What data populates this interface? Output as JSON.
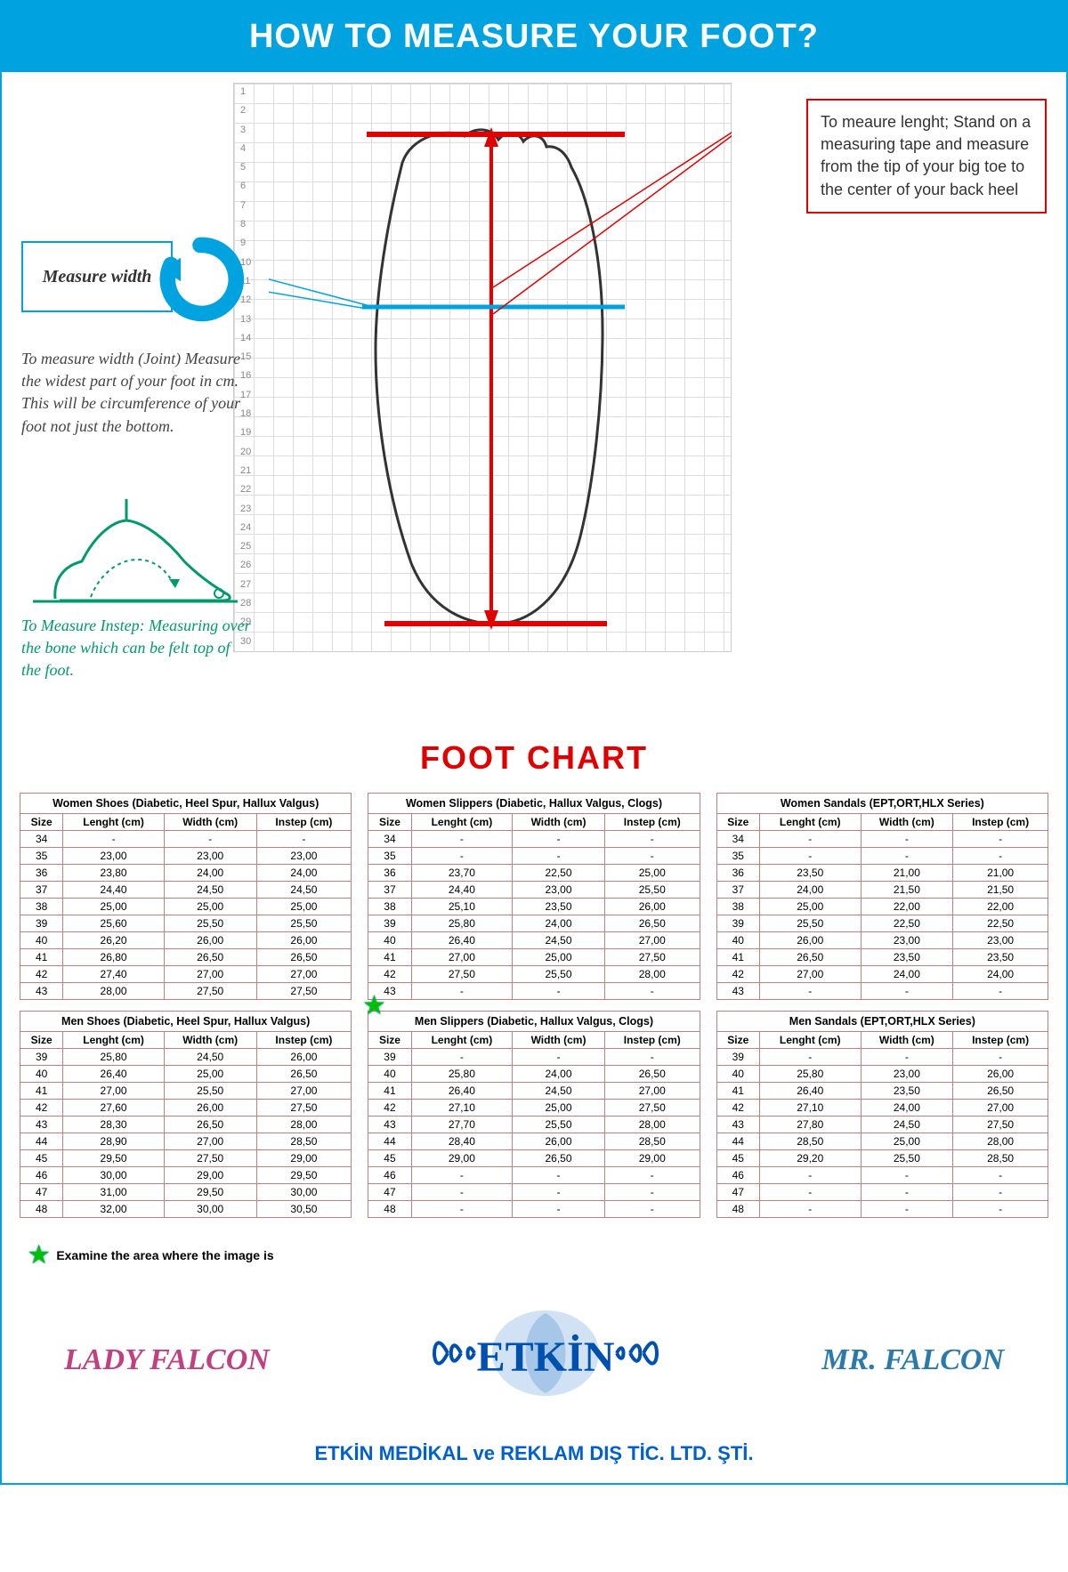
{
  "banner_title": "HOW TO MEASURE YOUR FOOT?",
  "width_box_label": "Measure width",
  "width_instructions": "To measure width (Joint) Measure the widest part of your foot in cm. This will be circumference of your foot not just the bottom.",
  "instep_instructions": "To Measure Instep: Measuring over the bone which can be felt top of the foot.",
  "length_instructions": "To meaure lenght; Stand on a measuring tape and measure from  the tip of your big toe to the center of your back heel",
  "chart_title": "FOOT CHART",
  "grid_max_row": 30,
  "diagram": {
    "grid_color": "#dddddd",
    "foot_outline_color": "#333333",
    "length_arrow_color": "#e00000",
    "width_line_color": "#00a3e0",
    "instep_color": "#009a6d"
  },
  "columns": [
    "Size",
    "Lenght (cm)",
    "Width (cm)",
    "Instep (cm)"
  ],
  "tables": [
    {
      "title": "Women Shoes (Diabetic, Heel Spur, Hallux Valgus)",
      "rows": [
        [
          "34",
          "-",
          "-",
          "-"
        ],
        [
          "35",
          "23,00",
          "23,00",
          "23,00"
        ],
        [
          "36",
          "23,80",
          "24,00",
          "24,00"
        ],
        [
          "37",
          "24,40",
          "24,50",
          "24,50"
        ],
        [
          "38",
          "25,00",
          "25,00",
          "25,00"
        ],
        [
          "39",
          "25,60",
          "25,50",
          "25,50"
        ],
        [
          "40",
          "26,20",
          "26,00",
          "26,00"
        ],
        [
          "41",
          "26,80",
          "26,50",
          "26,50"
        ],
        [
          "42",
          "27,40",
          "27,00",
          "27,00"
        ],
        [
          "43",
          "28,00",
          "27,50",
          "27,50"
        ]
      ]
    },
    {
      "title": "Women Slippers (Diabetic, Hallux Valgus, Clogs)",
      "rows": [
        [
          "34",
          "-",
          "-",
          "-"
        ],
        [
          "35",
          "-",
          "-",
          "-"
        ],
        [
          "36",
          "23,70",
          "22,50",
          "25,00"
        ],
        [
          "37",
          "24,40",
          "23,00",
          "25,50"
        ],
        [
          "38",
          "25,10",
          "23,50",
          "26,00"
        ],
        [
          "39",
          "25,80",
          "24,00",
          "26,50"
        ],
        [
          "40",
          "26,40",
          "24,50",
          "27,00"
        ],
        [
          "41",
          "27,00",
          "25,00",
          "27,50"
        ],
        [
          "42",
          "27,50",
          "25,50",
          "28,00"
        ],
        [
          "43",
          "-",
          "-",
          "-"
        ]
      ]
    },
    {
      "title": "Women Sandals (EPT,ORT,HLX Series)",
      "rows": [
        [
          "34",
          "-",
          "-",
          "-"
        ],
        [
          "35",
          "-",
          "-",
          "-"
        ],
        [
          "36",
          "23,50",
          "21,00",
          "21,00"
        ],
        [
          "37",
          "24,00",
          "21,50",
          "21,50"
        ],
        [
          "38",
          "25,00",
          "22,00",
          "22,00"
        ],
        [
          "39",
          "25,50",
          "22,50",
          "22,50"
        ],
        [
          "40",
          "26,00",
          "23,00",
          "23,00"
        ],
        [
          "41",
          "26,50",
          "23,50",
          "23,50"
        ],
        [
          "42",
          "27,00",
          "24,00",
          "24,00"
        ],
        [
          "43",
          "-",
          "-",
          "-"
        ]
      ]
    },
    {
      "title": "Men Shoes (Diabetic, Heel Spur, Hallux Valgus)",
      "rows": [
        [
          "39",
          "25,80",
          "24,50",
          "26,00"
        ],
        [
          "40",
          "26,40",
          "25,00",
          "26,50"
        ],
        [
          "41",
          "27,00",
          "25,50",
          "27,00"
        ],
        [
          "42",
          "27,60",
          "26,00",
          "27,50"
        ],
        [
          "43",
          "28,30",
          "26,50",
          "28,00"
        ],
        [
          "44",
          "28,90",
          "27,00",
          "28,50"
        ],
        [
          "45",
          "29,50",
          "27,50",
          "29,00"
        ],
        [
          "46",
          "30,00",
          "29,00",
          "29,50"
        ],
        [
          "47",
          "31,00",
          "29,50",
          "30,00"
        ],
        [
          "48",
          "32,00",
          "30,00",
          "30,50"
        ]
      ]
    },
    {
      "title": "Men Slippers (Diabetic, Hallux Valgus, Clogs)",
      "rows": [
        [
          "39",
          "-",
          "-",
          "-"
        ],
        [
          "40",
          "25,80",
          "24,00",
          "26,50"
        ],
        [
          "41",
          "26,40",
          "24,50",
          "27,00"
        ],
        [
          "42",
          "27,10",
          "25,00",
          "27,50"
        ],
        [
          "43",
          "27,70",
          "25,50",
          "28,00"
        ],
        [
          "44",
          "28,40",
          "26,00",
          "28,50"
        ],
        [
          "45",
          "29,00",
          "26,50",
          "29,00"
        ],
        [
          "46",
          "-",
          "-",
          "-"
        ],
        [
          "47",
          "-",
          "-",
          "-"
        ],
        [
          "48",
          "-",
          "-",
          "-"
        ]
      ]
    },
    {
      "title": "Men Sandals (EPT,ORT,HLX Series)",
      "rows": [
        [
          "39",
          "-",
          "-",
          "-"
        ],
        [
          "40",
          "25,80",
          "23,00",
          "26,00"
        ],
        [
          "41",
          "26,40",
          "23,50",
          "26,50"
        ],
        [
          "42",
          "27,10",
          "24,00",
          "27,00"
        ],
        [
          "43",
          "27,80",
          "24,50",
          "27,50"
        ],
        [
          "44",
          "28,50",
          "25,00",
          "28,00"
        ],
        [
          "45",
          "29,20",
          "25,50",
          "28,50"
        ],
        [
          "46",
          "-",
          "-",
          "-"
        ],
        [
          "47",
          "-",
          "-",
          "-"
        ],
        [
          "48",
          "-",
          "-",
          "-"
        ]
      ]
    }
  ],
  "star_note": "Examine the area where the image is",
  "brand_left": "LADY FALCON",
  "brand_center": "ETKİN",
  "brand_right": "MR. FALCON",
  "company_footer": "ETKİN MEDİKAL ve REKLAM DIŞ TİC. LTD. ŞTİ."
}
